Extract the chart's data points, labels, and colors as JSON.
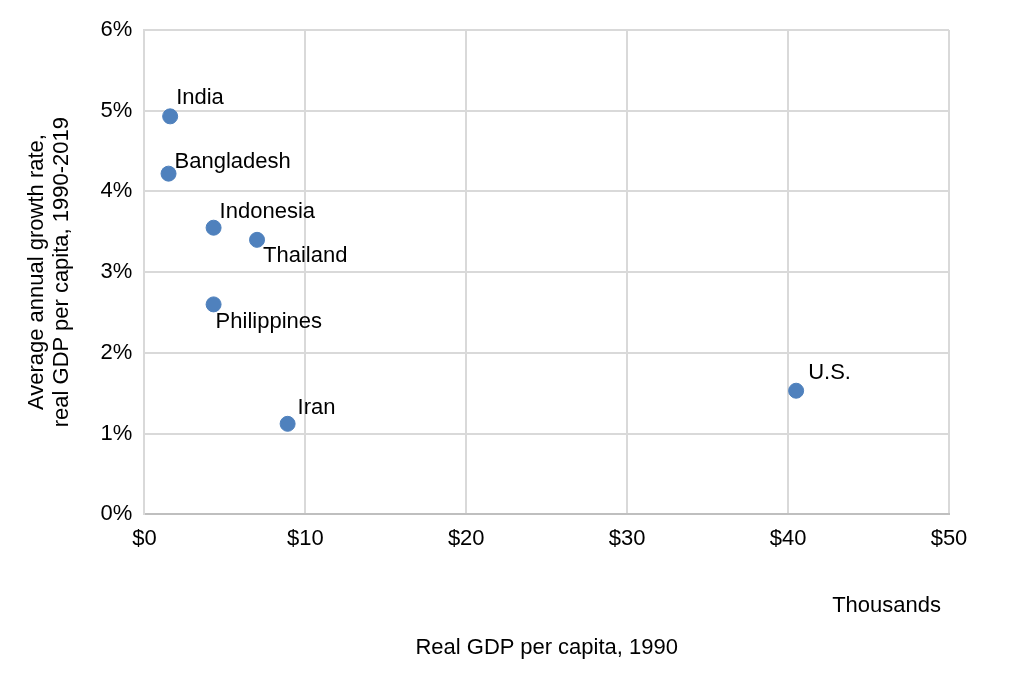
{
  "chart_data": {
    "type": "scatter",
    "xlabel": "Real GDP per capita, 1990",
    "ylabel": "Average annual growth rate, real GDP per capita, 1990-2019",
    "x": [
      1.6,
      1.5,
      4.3,
      7.0,
      4.3,
      8.9,
      40.5
    ],
    "values": [
      4.93,
      4.22,
      3.55,
      3.4,
      2.6,
      1.12,
      1.53
    ],
    "color": "#4f81bd",
    "marker": "circle",
    "grid": true,
    "legend": false,
    "xlim": [
      0,
      50
    ],
    "xticks": [
      {
        "value": 0,
        "label": "$0"
      },
      {
        "value": 10,
        "label": "$10"
      },
      {
        "value": 20,
        "label": "$20"
      },
      {
        "value": 30,
        "label": "$30"
      },
      {
        "value": 40,
        "label": "$40"
      },
      {
        "value": 50,
        "label": "$50"
      }
    ],
    "ylim": [
      0,
      6
    ],
    "yticks": [
      {
        "value": 0,
        "label": "0%"
      },
      {
        "value": 1,
        "label": "1%"
      },
      {
        "value": 2,
        "label": "2%"
      },
      {
        "value": 3,
        "label": "3%"
      },
      {
        "value": 4,
        "label": "4%"
      },
      {
        "value": 5,
        "label": "5%"
      },
      {
        "value": 6,
        "label": "6%"
      }
    ],
    "annotations": [
      {
        "text": "India",
        "x": 1.6,
        "y": 4.93
      },
      {
        "text": "Bangladesh",
        "x": 1.5,
        "y": 4.22
      },
      {
        "text": "Indonesia",
        "x": 4.3,
        "y": 3.55
      },
      {
        "text": "Thailand",
        "x": 7.0,
        "y": 3.4
      },
      {
        "text": "Philippines",
        "x": 4.3,
        "y": 2.6
      },
      {
        "text": "Iran",
        "x": 8.9,
        "y": 1.12
      },
      {
        "text": "U.S.",
        "x": 40.5,
        "y": 1.53
      },
      "Thousands"
    ]
  }
}
